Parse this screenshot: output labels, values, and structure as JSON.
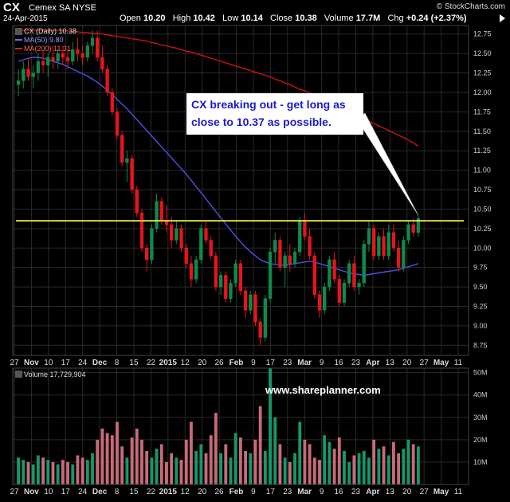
{
  "header": {
    "ticker": "CX",
    "company": "Cemex SA  NYSE",
    "date": "24-Apr-2015",
    "brand": "© StockCharts.com",
    "ohlc": [
      {
        "k": "Open",
        "v": "10.20"
      },
      {
        "k": "High",
        "v": "10.42"
      },
      {
        "k": "Low",
        "v": "10.14"
      },
      {
        "k": "Close",
        "v": "10.38"
      },
      {
        "k": "Volume",
        "v": "17.7M"
      },
      {
        "k": "Chg",
        "v": "+0.24 (+2.37%)"
      }
    ]
  },
  "legend": {
    "price": "CX (Daily) 10.38",
    "ma50": "MA(50) 9.80",
    "ma200": "MA(200) 11.31"
  },
  "volume_label": "Volume 17,729,904",
  "annotation": {
    "line1": "CX breaking out - get long as",
    "line2": "close to 10.37 as possible."
  },
  "watermark": "www.shareplanner.com",
  "colors": {
    "up": "#0e8a4a",
    "down": "#e8141b",
    "vol_up": "#16986a",
    "vol_down": "#c86a78",
    "ma50": "#5050e8",
    "ma200": "#cc1111",
    "resistance": "#ffff55",
    "grid": "#2a2a2a"
  },
  "chart_data": [
    {
      "type": "candlestick",
      "title": "CX (Daily) 10.38",
      "ylim": [
        8.62,
        12.86
      ],
      "yticks": [
        8.75,
        9.0,
        9.25,
        9.5,
        9.75,
        10.0,
        10.25,
        10.5,
        10.75,
        11.0,
        11.25,
        11.5,
        11.75,
        12.0,
        12.25,
        12.5,
        12.75
      ],
      "ytick_labels": [
        "8.75",
        "9.00",
        "9.25",
        "9.50",
        "9.75",
        "10.00",
        "10.25",
        "10.50",
        "10.75",
        "11.00",
        "11.25",
        "11.50",
        "11.75",
        "12.00",
        "12.25",
        "12.50",
        "12.75"
      ],
      "x_labels": [
        "27",
        "Nov",
        "10",
        "17",
        "24",
        "Dec",
        "8",
        "15",
        "22",
        "2015",
        "12",
        "20",
        "26",
        "Feb",
        "9",
        "17",
        "23",
        "Mar",
        "9",
        "16",
        "23",
        "Apr",
        "13",
        "20",
        "27",
        "May",
        "11"
      ],
      "x_label_bold": [
        "Nov",
        "Dec",
        "2015",
        "Feb",
        "Mar",
        "Apr",
        "May"
      ],
      "ohlc": [
        [
          12.1,
          12.3,
          11.95,
          12.15
        ],
        [
          12.15,
          12.4,
          12.05,
          12.3
        ],
        [
          12.3,
          12.45,
          12.15,
          12.2
        ],
        [
          12.2,
          12.35,
          12.05,
          12.25
        ],
        [
          12.25,
          12.5,
          12.15,
          12.4
        ],
        [
          12.4,
          12.55,
          12.25,
          12.35
        ],
        [
          12.35,
          12.5,
          12.2,
          12.45
        ],
        [
          12.45,
          12.6,
          12.3,
          12.4
        ],
        [
          12.4,
          12.55,
          12.3,
          12.5
        ],
        [
          12.5,
          12.6,
          12.35,
          12.45
        ],
        [
          12.45,
          12.55,
          12.3,
          12.4
        ],
        [
          12.4,
          12.65,
          12.35,
          12.55
        ],
        [
          12.55,
          12.7,
          12.4,
          12.5
        ],
        [
          12.5,
          12.6,
          12.35,
          12.45
        ],
        [
          12.45,
          12.65,
          12.4,
          12.6
        ],
        [
          12.6,
          12.8,
          12.5,
          12.7
        ],
        [
          12.7,
          12.8,
          12.4,
          12.45
        ],
        [
          12.45,
          12.6,
          12.25,
          12.3
        ],
        [
          12.3,
          12.35,
          11.95,
          12.0
        ],
        [
          12.0,
          12.05,
          11.7,
          11.75
        ],
        [
          11.75,
          11.8,
          11.4,
          11.45
        ],
        [
          11.45,
          11.5,
          11.05,
          11.1
        ],
        [
          11.1,
          11.25,
          10.85,
          11.15
        ],
        [
          11.15,
          11.2,
          10.7,
          10.75
        ],
        [
          10.75,
          10.8,
          10.4,
          10.45
        ],
        [
          10.45,
          10.5,
          9.95,
          10.0
        ],
        [
          10.0,
          10.05,
          9.7,
          9.85
        ],
        [
          9.85,
          10.3,
          9.8,
          10.25
        ],
        [
          10.25,
          10.7,
          10.2,
          10.6
        ],
        [
          10.6,
          10.65,
          10.3,
          10.35
        ],
        [
          10.35,
          10.55,
          10.2,
          10.3
        ],
        [
          10.3,
          10.4,
          10.0,
          10.1
        ],
        [
          10.1,
          10.35,
          10.05,
          10.25
        ],
        [
          10.25,
          10.3,
          9.95,
          10.0
        ],
        [
          10.0,
          10.05,
          9.75,
          9.8
        ],
        [
          9.8,
          9.9,
          9.5,
          9.6
        ],
        [
          9.6,
          9.9,
          9.55,
          9.85
        ],
        [
          9.85,
          10.3,
          9.8,
          10.25
        ],
        [
          10.25,
          10.35,
          10.05,
          10.1
        ],
        [
          10.1,
          10.15,
          9.85,
          9.9
        ],
        [
          9.9,
          9.95,
          9.45,
          9.5
        ],
        [
          9.5,
          9.7,
          9.4,
          9.65
        ],
        [
          9.65,
          9.7,
          9.3,
          9.35
        ],
        [
          9.35,
          9.6,
          9.3,
          9.55
        ],
        [
          9.55,
          9.85,
          9.5,
          9.8
        ],
        [
          9.8,
          9.85,
          9.4,
          9.45
        ],
        [
          9.45,
          9.5,
          9.1,
          9.2
        ],
        [
          9.2,
          9.45,
          9.15,
          9.4
        ],
        [
          9.4,
          9.45,
          9.0,
          9.05
        ],
        [
          9.05,
          9.1,
          8.75,
          8.85
        ],
        [
          8.85,
          9.4,
          8.8,
          9.35
        ],
        [
          9.35,
          10.0,
          9.3,
          9.95
        ],
        [
          9.95,
          10.2,
          9.8,
          10.1
        ],
        [
          10.1,
          10.15,
          9.7,
          9.75
        ],
        [
          9.75,
          9.95,
          9.5,
          9.9
        ],
        [
          9.9,
          10.05,
          9.7,
          9.8
        ],
        [
          9.8,
          10.0,
          9.75,
          9.95
        ],
        [
          9.95,
          10.4,
          9.9,
          10.35
        ],
        [
          10.35,
          10.45,
          10.1,
          10.15
        ],
        [
          10.15,
          10.25,
          9.85,
          9.9
        ],
        [
          9.9,
          9.95,
          9.35,
          9.4
        ],
        [
          9.4,
          9.45,
          9.1,
          9.2
        ],
        [
          9.2,
          9.55,
          9.15,
          9.5
        ],
        [
          9.5,
          9.9,
          9.45,
          9.85
        ],
        [
          9.85,
          9.95,
          9.55,
          9.6
        ],
        [
          9.6,
          9.65,
          9.25,
          9.3
        ],
        [
          9.3,
          9.6,
          9.25,
          9.55
        ],
        [
          9.55,
          9.85,
          9.5,
          9.8
        ],
        [
          9.8,
          9.9,
          9.45,
          9.5
        ],
        [
          9.5,
          9.6,
          9.4,
          9.55
        ],
        [
          9.55,
          10.1,
          9.5,
          10.05
        ],
        [
          10.05,
          10.35,
          9.95,
          10.25
        ],
        [
          10.25,
          10.3,
          9.85,
          9.9
        ],
        [
          9.9,
          10.2,
          9.85,
          10.15
        ],
        [
          10.15,
          10.25,
          9.85,
          9.9
        ],
        [
          9.9,
          10.3,
          9.85,
          10.2
        ],
        [
          10.2,
          10.3,
          9.95,
          10.0
        ],
        [
          10.0,
          10.1,
          9.7,
          9.75
        ],
        [
          9.75,
          10.15,
          9.7,
          10.1
        ],
        [
          10.1,
          10.35,
          10.05,
          10.3
        ],
        [
          10.3,
          10.38,
          10.15,
          10.2
        ],
        [
          10.2,
          10.42,
          10.14,
          10.38
        ]
      ],
      "series": [
        {
          "name": "MA(50) 9.80",
          "values": [
            12.4,
            12.42,
            12.44,
            12.45,
            12.45,
            12.44,
            12.42,
            12.4,
            12.38,
            12.36,
            12.33,
            12.3,
            12.27,
            12.24,
            12.21,
            12.17,
            12.13,
            12.08,
            12.03,
            11.97,
            11.91,
            11.85,
            11.79,
            11.72,
            11.65,
            11.58,
            11.51,
            11.44,
            11.37,
            11.3,
            11.23,
            11.16,
            11.09,
            11.02,
            10.95,
            10.87,
            10.79,
            10.71,
            10.63,
            10.55,
            10.47,
            10.39,
            10.31,
            10.23,
            10.15,
            10.08,
            10.01,
            9.95,
            9.9,
            9.85,
            9.82,
            9.8,
            9.79,
            9.78,
            9.78,
            9.79,
            9.8,
            9.81,
            9.82,
            9.83,
            9.82,
            9.8,
            9.78,
            9.76,
            9.74,
            9.72,
            9.7,
            9.68,
            9.67,
            9.66,
            9.65,
            9.66,
            9.67,
            9.68,
            9.69,
            9.7,
            9.71,
            9.72,
            9.74,
            9.76,
            9.78,
            9.8
          ]
        },
        {
          "name": "MA(200) 11.31",
          "values": [
            12.8,
            12.8,
            12.8,
            12.8,
            12.8,
            12.8,
            12.8,
            12.8,
            12.8,
            12.79,
            12.79,
            12.78,
            12.78,
            12.77,
            12.77,
            12.76,
            12.76,
            12.75,
            12.74,
            12.73,
            12.72,
            12.71,
            12.7,
            12.69,
            12.68,
            12.67,
            12.66,
            12.64,
            12.63,
            12.61,
            12.6,
            12.58,
            12.57,
            12.55,
            12.53,
            12.52,
            12.5,
            12.48,
            12.46,
            12.44,
            12.42,
            12.4,
            12.38,
            12.36,
            12.34,
            12.32,
            12.3,
            12.28,
            12.26,
            12.24,
            12.22,
            12.2,
            12.17,
            12.15,
            12.12,
            12.1,
            12.07,
            12.04,
            12.02,
            11.99,
            11.96,
            11.93,
            11.9,
            11.87,
            11.84,
            11.81,
            11.78,
            11.75,
            11.72,
            11.69,
            11.66,
            11.63,
            11.6,
            11.57,
            11.54,
            11.51,
            11.48,
            11.45,
            11.42,
            11.39,
            11.35,
            11.31
          ]
        }
      ],
      "resistance_level": 10.35
    },
    {
      "type": "bar",
      "title": "Volume 17,729,904",
      "ylim": [
        0,
        52
      ],
      "yticks": [
        10,
        20,
        30,
        40,
        50
      ],
      "ytick_labels": [
        "10M",
        "20M",
        "30M",
        "40M",
        "50M"
      ],
      "x_labels": [
        "27",
        "Nov",
        "10",
        "17",
        "24",
        "Dec",
        "8",
        "15",
        "22",
        "2015",
        "12",
        "20",
        "26",
        "Feb",
        "9",
        "17",
        "23",
        "Mar",
        "9",
        "16",
        "23",
        "Apr",
        "13",
        "20",
        "27",
        "May",
        "11"
      ],
      "x_label_bold": [
        "Nov",
        "Dec",
        "2015",
        "Feb",
        "Mar",
        "Apr",
        "May"
      ],
      "values": [
        12,
        11,
        10,
        9,
        13,
        12,
        11,
        10,
        9,
        11,
        10,
        9,
        13,
        12,
        11,
        14,
        20,
        25,
        23,
        22,
        28,
        17,
        12,
        21,
        25,
        20,
        15,
        12,
        16,
        18,
        10,
        14,
        12,
        11,
        20,
        28,
        15,
        18,
        14,
        22,
        32,
        14,
        18,
        12,
        23,
        21,
        15,
        14,
        20,
        35,
        15,
        52,
        30,
        18,
        12,
        10,
        14,
        28,
        20,
        18,
        12,
        11,
        22,
        19,
        16,
        21,
        15,
        10,
        13,
        14,
        15,
        12,
        20,
        16,
        17,
        13,
        19,
        14,
        16,
        20,
        18,
        17
      ]
    }
  ]
}
